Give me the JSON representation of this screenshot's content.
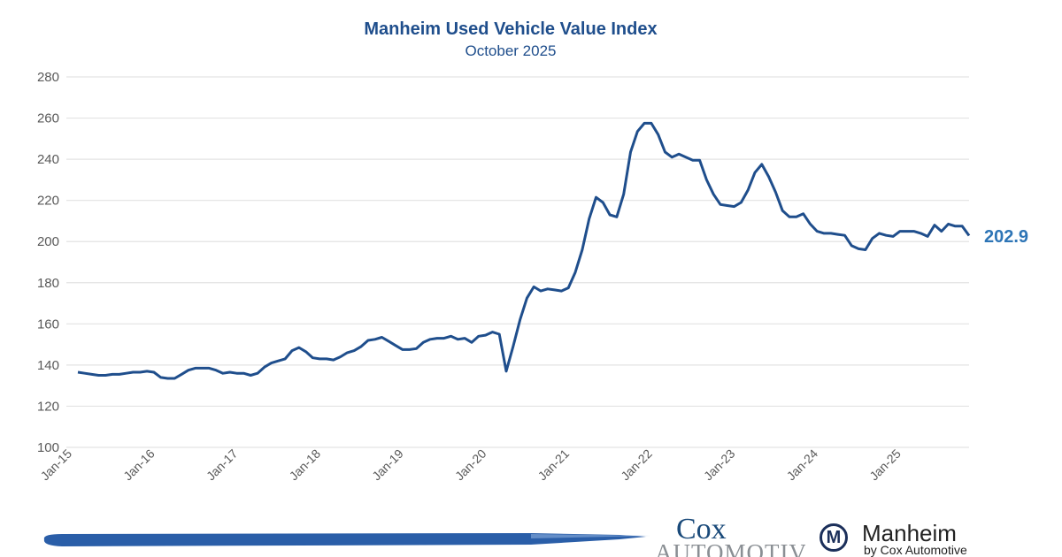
{
  "chart_data": {
    "type": "line",
    "title": "Manheim Used Vehicle Value Index",
    "subtitle": "October 2025",
    "xlabel": "",
    "ylabel": "",
    "ylim": [
      100,
      280
    ],
    "yticks": [
      100,
      120,
      140,
      160,
      180,
      200,
      220,
      240,
      260,
      280
    ],
    "xtick_labels": [
      "Jan-15",
      "Jan-16",
      "Jan-17",
      "Jan-18",
      "Jan-19",
      "Jan-20",
      "Jan-21",
      "Jan-22",
      "Jan-23",
      "Jan-24",
      "Jan-25"
    ],
    "grid": "horizontal",
    "legend": "none",
    "color": "#1f4e8c",
    "end_label": "202.9",
    "end_label_color": "#2e75b6",
    "x": [
      "2015-01",
      "2015-02",
      "2015-03",
      "2015-04",
      "2015-05",
      "2015-06",
      "2015-07",
      "2015-08",
      "2015-09",
      "2015-10",
      "2015-11",
      "2015-12",
      "2016-01",
      "2016-02",
      "2016-03",
      "2016-04",
      "2016-05",
      "2016-06",
      "2016-07",
      "2016-08",
      "2016-09",
      "2016-10",
      "2016-11",
      "2016-12",
      "2017-01",
      "2017-02",
      "2017-03",
      "2017-04",
      "2017-05",
      "2017-06",
      "2017-07",
      "2017-08",
      "2017-09",
      "2017-10",
      "2017-11",
      "2017-12",
      "2018-01",
      "2018-02",
      "2018-03",
      "2018-04",
      "2018-05",
      "2018-06",
      "2018-07",
      "2018-08",
      "2018-09",
      "2018-10",
      "2018-11",
      "2018-12",
      "2019-01",
      "2019-02",
      "2019-03",
      "2019-04",
      "2019-05",
      "2019-06",
      "2019-07",
      "2019-08",
      "2019-09",
      "2019-10",
      "2019-11",
      "2019-12",
      "2020-01",
      "2020-02",
      "2020-03",
      "2020-04",
      "2020-05",
      "2020-06",
      "2020-07",
      "2020-08",
      "2020-09",
      "2020-10",
      "2020-11",
      "2020-12",
      "2021-01",
      "2021-02",
      "2021-03",
      "2021-04",
      "2021-05",
      "2021-06",
      "2021-07",
      "2021-08",
      "2021-09",
      "2021-10",
      "2021-11",
      "2021-12",
      "2022-01",
      "2022-02",
      "2022-03",
      "2022-04",
      "2022-05",
      "2022-06",
      "2022-07",
      "2022-08",
      "2022-09",
      "2022-10",
      "2022-11",
      "2022-12",
      "2023-01",
      "2023-02",
      "2023-03",
      "2023-04",
      "2023-05",
      "2023-06",
      "2023-07",
      "2023-08",
      "2023-09",
      "2023-10",
      "2023-11",
      "2023-12",
      "2024-01",
      "2024-02",
      "2024-03",
      "2024-04",
      "2024-05",
      "2024-06",
      "2024-07",
      "2024-08",
      "2024-09",
      "2024-10",
      "2024-11",
      "2024-12",
      "2025-01",
      "2025-02",
      "2025-03",
      "2025-04",
      "2025-05",
      "2025-06",
      "2025-07",
      "2025-08",
      "2025-09",
      "2025-10"
    ],
    "values": [
      136.5,
      136,
      135.5,
      135,
      135,
      135.5,
      135.5,
      136,
      136.5,
      136.5,
      137,
      136.5,
      134,
      133.5,
      133.5,
      135.5,
      137.5,
      138.5,
      138.5,
      138.5,
      137.5,
      136,
      136.5,
      136,
      136,
      135,
      136,
      139,
      141,
      142,
      143,
      147,
      148.5,
      146.5,
      143.5,
      143,
      143,
      142.5,
      144,
      146,
      147,
      149,
      152,
      152.5,
      153.5,
      151.5,
      149.5,
      147.5,
      147.5,
      148,
      151,
      152.5,
      153,
      153,
      154,
      152.5,
      153,
      151,
      154,
      154.5,
      156,
      155,
      137,
      149,
      162,
      172.5,
      178,
      176,
      177,
      176.5,
      176,
      177.5,
      185,
      196,
      211,
      221.5,
      219,
      213,
      212,
      223,
      243.5,
      253.5,
      257.5,
      257.5,
      252,
      243.5,
      241,
      242.5,
      241,
      239.5,
      239.5,
      230,
      223,
      218,
      217.5,
      217,
      219,
      225,
      233.5,
      237.5,
      231.5,
      224,
      215,
      212,
      212,
      213.5,
      208.5,
      205,
      204,
      204,
      203.5,
      203,
      198,
      196.5,
      196,
      201.5,
      204,
      203,
      202.5,
      205,
      205,
      205,
      204,
      202.5,
      208,
      205,
      208.5,
      207.5,
      207.5,
      202.9
    ]
  },
  "logos": {
    "cox_line1": "Cox",
    "cox_line2": "Automotive",
    "manheim_name": "Manheim",
    "manheim_tagline": "by Cox Automotive",
    "manheim_mark": "M",
    "brush_color": "#2a5ea8"
  }
}
